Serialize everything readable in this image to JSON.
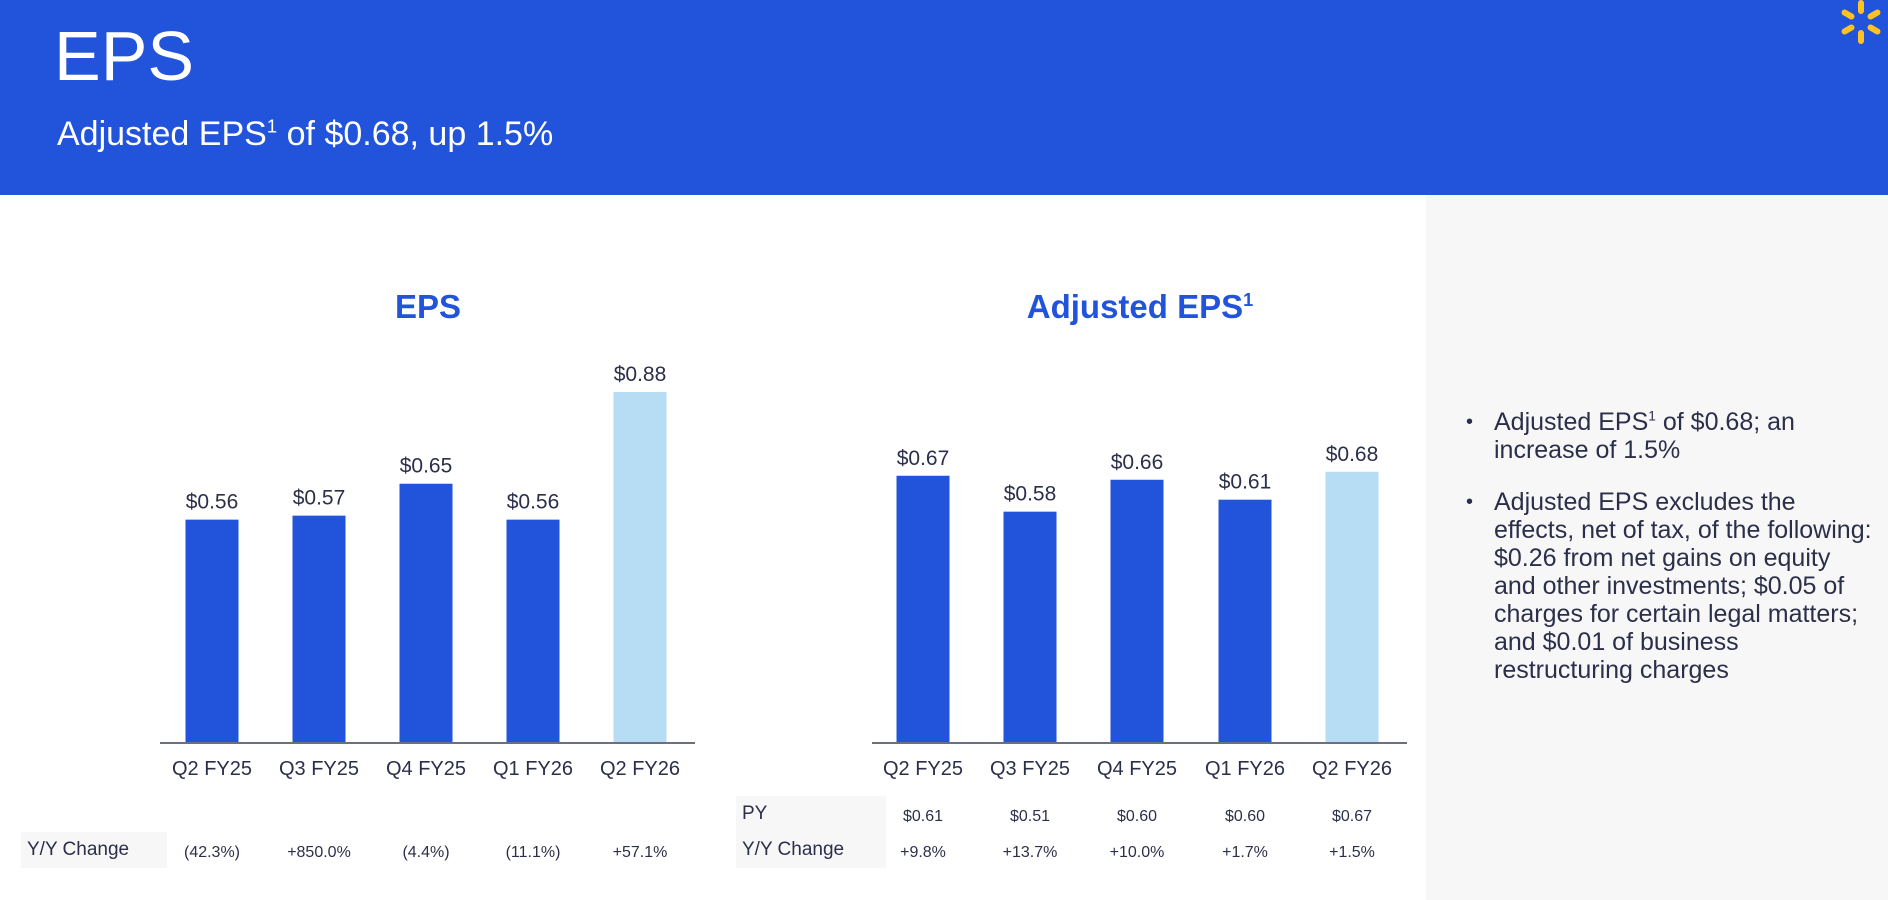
{
  "header": {
    "title": "EPS",
    "subtitle_main": "Adjusted EPS",
    "subtitle_sup": "1",
    "subtitle_rest": " of $0.68, up 1.5%",
    "color": "#2153db"
  },
  "logo": {
    "icon": "spark-logo-icon",
    "color": "#ffc220"
  },
  "bullets": [
    {
      "pre": "Adjusted EPS",
      "sup": "1",
      "post": " of $0.68; an increase of 1.5%"
    },
    {
      "pre": "Adjusted EPS excludes the effects, net of tax, of the following: $0.26 from net gains on equity and other investments; $0.05 of charges for certain legal matters; and  $0.01 of business restructuring charges",
      "sup": "",
      "post": ""
    }
  ],
  "colors": {
    "bar": "#2153db",
    "highlight": "#b6ddf4",
    "label": "#2b2f4a"
  },
  "chart_data": [
    {
      "type": "bar",
      "title": "EPS",
      "title_sup": "",
      "categories": [
        "Q2 FY25",
        "Q3 FY25",
        "Q4 FY25",
        "Q1 FY26",
        "Q2 FY26"
      ],
      "values": [
        0.56,
        0.57,
        0.65,
        0.56,
        0.88
      ],
      "value_labels": [
        "$0.56",
        "$0.57",
        "$0.65",
        "$0.56",
        "$0.88"
      ],
      "highlight_index": 4,
      "ylim": [
        0,
        0.88
      ],
      "rows": [
        {
          "label": "Y/Y Change",
          "values": [
            "(42.3%)",
            "+850.0%",
            "(4.4%)",
            "(11.1%)",
            "+57.1%"
          ]
        }
      ]
    },
    {
      "type": "bar",
      "title": "Adjusted EPS",
      "title_sup": "1",
      "categories": [
        "Q2 FY25",
        "Q3 FY25",
        "Q4 FY25",
        "Q1 FY26",
        "Q2 FY26"
      ],
      "values": [
        0.67,
        0.58,
        0.66,
        0.61,
        0.68
      ],
      "value_labels": [
        "$0.67",
        "$0.58",
        "$0.66",
        "$0.61",
        "$0.68"
      ],
      "highlight_index": 4,
      "ylim": [
        0,
        0.88
      ],
      "rows": [
        {
          "label": "PY",
          "values": [
            "$0.61",
            "$0.51",
            "$0.60",
            "$0.60",
            "$0.67"
          ]
        },
        {
          "label": "Y/Y Change",
          "values": [
            "+9.8%",
            "+13.7%",
            "+10.0%",
            "+1.7%",
            "+1.5%"
          ]
        }
      ]
    }
  ]
}
